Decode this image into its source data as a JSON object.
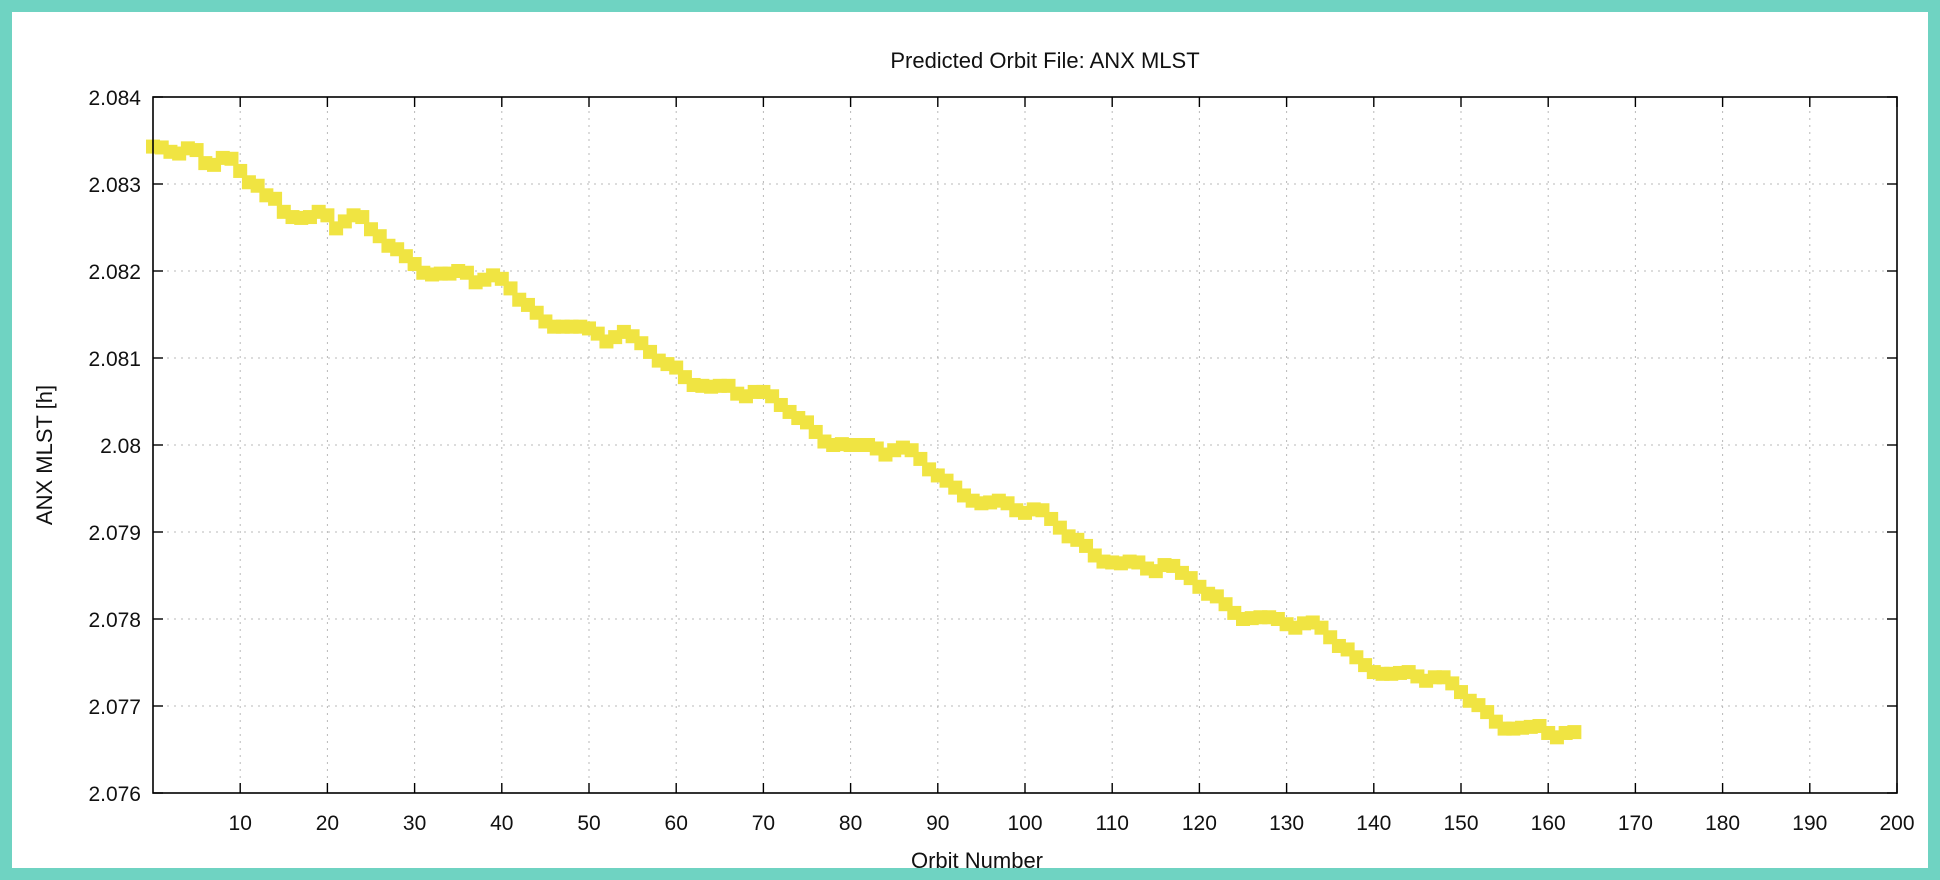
{
  "chart_data": {
    "type": "scatter",
    "title": "Predicted Orbit File: ANX MLST",
    "xlabel": "Orbit Number",
    "ylabel": "ANX MLST [h]",
    "xlim": [
      0,
      200
    ],
    "ylim": [
      2.076,
      2.084
    ],
    "xticks": [
      10,
      20,
      30,
      40,
      50,
      60,
      70,
      80,
      90,
      100,
      110,
      120,
      130,
      140,
      150,
      160,
      170,
      180,
      190,
      200
    ],
    "xtick_labels": [
      "10",
      "20",
      "30",
      "40",
      "50",
      "60",
      "70",
      "80",
      "90",
      "100",
      "110",
      "120",
      "130",
      "140",
      "150",
      "160",
      "170",
      "180",
      "190",
      "200"
    ],
    "yticks": [
      2.076,
      2.077,
      2.078,
      2.079,
      2.08,
      2.081,
      2.082,
      2.083,
      2.084
    ],
    "ytick_labels": [
      "2.076",
      "2.077",
      "2.078",
      "2.079",
      "2.08",
      "2.081",
      "2.082",
      "2.083",
      "2.084"
    ],
    "grid": true,
    "marker": "square",
    "color": "#f0e442",
    "x": [
      0,
      1,
      2,
      3,
      4,
      5,
      6,
      7,
      8,
      9,
      10,
      11,
      12,
      13,
      14,
      15,
      16,
      17,
      18,
      19,
      20,
      21,
      22,
      23,
      24,
      25,
      26,
      27,
      28,
      29,
      30,
      31,
      32,
      33,
      34,
      35,
      36,
      37,
      38,
      39,
      40,
      41,
      42,
      43,
      44,
      45,
      46,
      47,
      48,
      49,
      50,
      51,
      52,
      53,
      54,
      55,
      56,
      57,
      58,
      59,
      60,
      61,
      62,
      63,
      64,
      65,
      66,
      67,
      68,
      69,
      70,
      71,
      72,
      73,
      74,
      75,
      76,
      77,
      78,
      79,
      80,
      81,
      82,
      83,
      84,
      85,
      86,
      87,
      88,
      89,
      90,
      91,
      92,
      93,
      94,
      95,
      96,
      97,
      98,
      99,
      100,
      101,
      102,
      103,
      104,
      105,
      106,
      107,
      108,
      109,
      110,
      111,
      112,
      113,
      114,
      115,
      116,
      117,
      118,
      119,
      120,
      121,
      122,
      123,
      124,
      125,
      126,
      127,
      128,
      129,
      130,
      131,
      132,
      133,
      134,
      135,
      136,
      137,
      138,
      139,
      140,
      141,
      142,
      143,
      144,
      145,
      146,
      147,
      148,
      149,
      150,
      151,
      152,
      153,
      154,
      155,
      156,
      157,
      158,
      159,
      160,
      161,
      162,
      163
    ],
    "y": [
      2.08343,
      2.08342,
      2.08337,
      2.08335,
      2.08341,
      2.08339,
      2.08324,
      2.08322,
      2.0833,
      2.08329,
      2.08315,
      2.08302,
      2.08298,
      2.08287,
      2.08283,
      2.08268,
      2.08262,
      2.08261,
      2.08262,
      2.08268,
      2.08264,
      2.08249,
      2.08257,
      2.08264,
      2.08262,
      2.08248,
      2.0824,
      2.08229,
      2.08225,
      2.08217,
      2.08208,
      2.08198,
      2.08196,
      2.08197,
      2.08197,
      2.082,
      2.08198,
      2.08187,
      2.0819,
      2.08195,
      2.08191,
      2.0818,
      2.08167,
      2.08161,
      2.08152,
      2.08142,
      2.08136,
      2.08136,
      2.08136,
      2.08136,
      2.08134,
      2.08128,
      2.08119,
      2.08124,
      2.0813,
      2.08125,
      2.08117,
      2.08107,
      2.08097,
      2.08093,
      2.08089,
      2.08078,
      2.08069,
      2.08068,
      2.08067,
      2.08068,
      2.08068,
      2.08059,
      2.08056,
      2.08061,
      2.08061,
      2.08056,
      2.08046,
      2.08038,
      2.08031,
      2.08026,
      2.08015,
      2.08004,
      2.08,
      2.08001,
      2.08,
      2.08,
      2.08,
      2.07996,
      2.07989,
      2.07994,
      2.07997,
      2.07994,
      2.07984,
      2.07972,
      2.07965,
      2.07959,
      2.07951,
      2.07942,
      2.07936,
      2.07933,
      2.07934,
      2.07936,
      2.07933,
      2.07925,
      2.07922,
      2.07926,
      2.07925,
      2.07915,
      2.07905,
      2.07895,
      2.07891,
      2.07884,
      2.07873,
      2.07866,
      2.07865,
      2.07864,
      2.07866,
      2.07865,
      2.07858,
      2.07855,
      2.07862,
      2.07861,
      2.07853,
      2.07847,
      2.07837,
      2.07829,
      2.07826,
      2.07817,
      2.07807,
      2.078,
      2.07801,
      2.07802,
      2.07802,
      2.078,
      2.07794,
      2.0779,
      2.07795,
      2.07796,
      2.0779,
      2.07779,
      2.07769,
      2.07765,
      2.07756,
      2.07747,
      2.07739,
      2.07737,
      2.07737,
      2.07738,
      2.07739,
      2.07734,
      2.07729,
      2.07733,
      2.07733,
      2.07726,
      2.07716,
      2.07706,
      2.07701,
      2.07693,
      2.07682,
      2.07674,
      2.07674,
      2.07675,
      2.07676,
      2.07677,
      2.07669,
      2.07664,
      2.07669,
      2.0767
    ]
  }
}
